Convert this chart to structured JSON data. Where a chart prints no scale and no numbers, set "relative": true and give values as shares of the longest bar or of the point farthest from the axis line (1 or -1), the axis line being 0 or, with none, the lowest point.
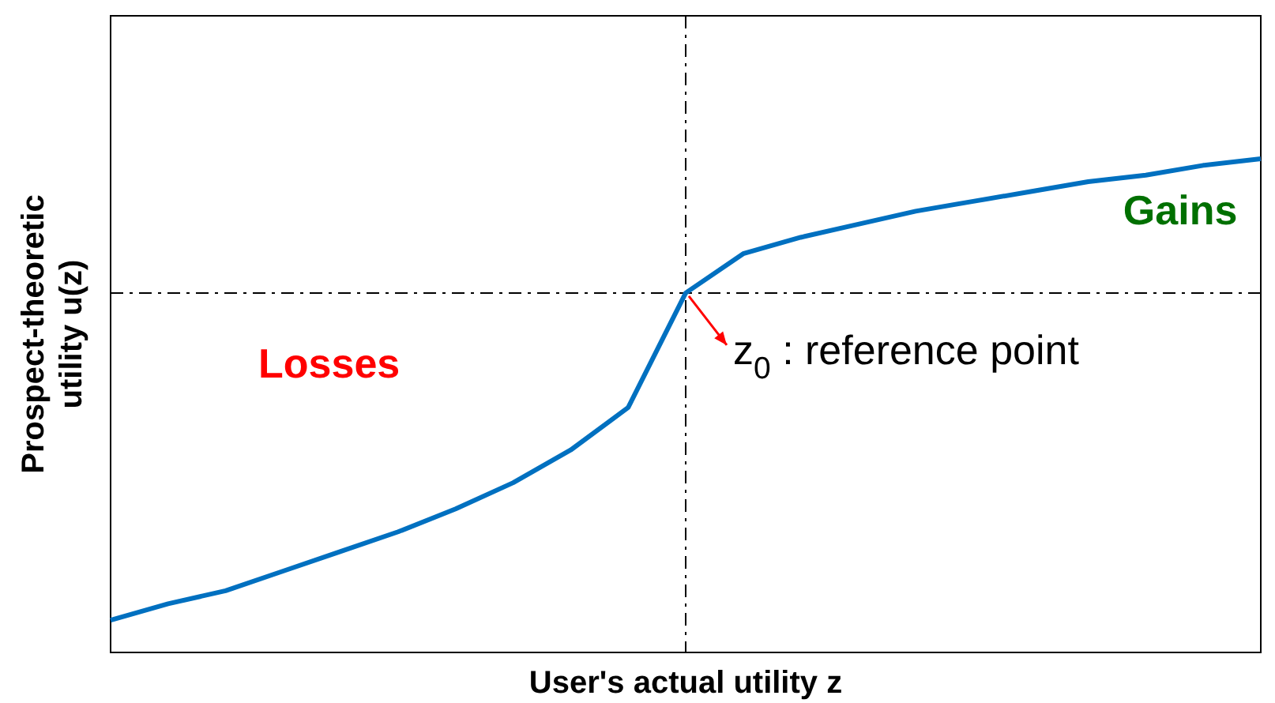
{
  "chart_data": {
    "type": "line",
    "relative": true,
    "xlabel": "User's actual utility z",
    "ylabel": "Prospect-theoretic utility u(z)",
    "categories": [
      null,
      null,
      null,
      null,
      null,
      null,
      null,
      null,
      null,
      null,
      null,
      null,
      null,
      null,
      null,
      null,
      null,
      null,
      null,
      null,
      null
    ],
    "legend": false,
    "grid": false,
    "marker": "none",
    "line_style": "solid",
    "series": [
      {
        "color": "#0070c0",
        "values": [
          -1,
          -0.95,
          -0.91,
          -0.85,
          -0.79,
          -0.73,
          -0.66,
          -0.58,
          -0.48,
          -0.35,
          0,
          0.12,
          0.17,
          0.21,
          0.25,
          0.28,
          0.31,
          0.34,
          0.36,
          0.39,
          0.41
        ]
      }
    ],
    "ref_lines": [
      {
        "axis": "y",
        "value": 0,
        "color": "#000000",
        "line_style": "dashdot"
      }
    ],
    "annotations": [
      "Losses",
      "Gains",
      "z$_{0}$ : reference point"
    ]
  }
}
